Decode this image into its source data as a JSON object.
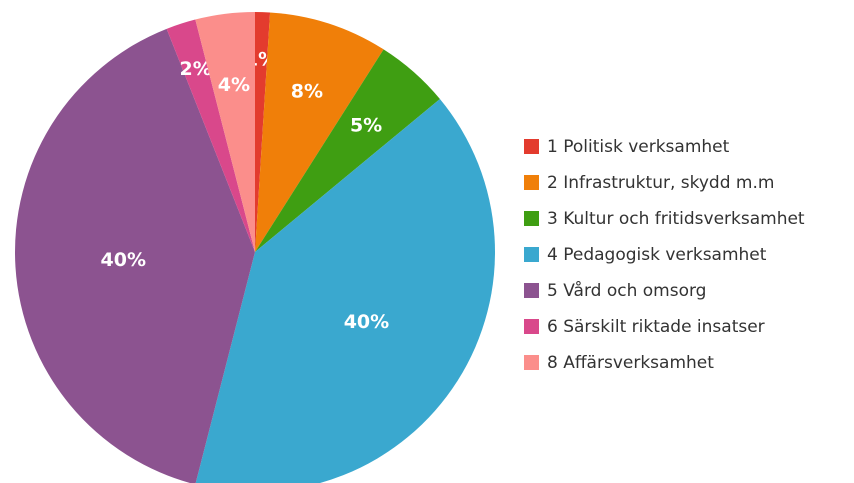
{
  "chart_data": {
    "type": "pie",
    "categories": [
      "1 Politisk verksamhet",
      "2 Infrastruktur, skydd m.m",
      "3 Kultur och fritidsverksamhet",
      "4 Pedagogisk verksamhet",
      "5 Vård och omsorg",
      "6 Särskilt riktade insatser",
      "8 Affärsverksamhet"
    ],
    "values": [
      1,
      8,
      5,
      40,
      40,
      2,
      4
    ],
    "value_labels": [
      "1%",
      "8%",
      "5%",
      "40%",
      "40%",
      "2%",
      "4%"
    ],
    "colors": [
      "#e33b2e",
      "#f07f09",
      "#3f9e12",
      "#3aa8cf",
      "#8c5390",
      "#d9488b",
      "#fb8e8b"
    ],
    "legend": "right"
  }
}
